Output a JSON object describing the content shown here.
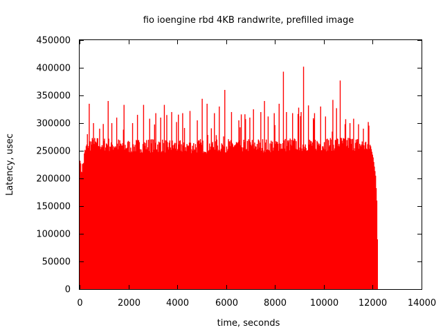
{
  "chart_data": {
    "type": "bar",
    "title": "fio ioengine rbd 4KB randwrite, prefilled image",
    "xlabel": "time, seconds",
    "ylabel": "Latency, usec",
    "xlim": [
      0,
      14000
    ],
    "ylim": [
      0,
      450000
    ],
    "x_ticks": [
      "0",
      "2000",
      "4000",
      "6000",
      "8000",
      "10000",
      "12000",
      "14000"
    ],
    "y_ticks": [
      "0",
      "50000",
      "100000",
      "150000",
      "200000",
      "250000",
      "300000",
      "350000",
      "400000",
      "450000"
    ],
    "grid": false,
    "legend": "none",
    "bar_color": "#ff0000",
    "series": [
      {
        "x_start": 0,
        "x_end": 12200,
        "x_step": 25,
        "typical_min": 205000,
        "typical_max": 275000,
        "band": [
          [
            0,
            215000
          ],
          [
            100,
            220000
          ],
          [
            200,
            245000
          ],
          [
            300,
            262000
          ],
          [
            1000,
            262000
          ],
          [
            2000,
            258000
          ],
          [
            3000,
            260000
          ],
          [
            4000,
            258000
          ],
          [
            5000,
            258000
          ],
          [
            6000,
            260000
          ],
          [
            7000,
            260000
          ],
          [
            8000,
            260000
          ],
          [
            9000,
            262000
          ],
          [
            10000,
            262000
          ],
          [
            11000,
            264000
          ],
          [
            11900,
            258000
          ],
          [
            12000,
            238000
          ],
          [
            12100,
            205000
          ],
          [
            12150,
            160000
          ],
          [
            12200,
            20000
          ]
        ],
        "peaks": [
          [
            10,
            232000
          ],
          [
            310,
            280000
          ],
          [
            380,
            335000
          ],
          [
            560,
            300000
          ],
          [
            800,
            290000
          ],
          [
            1150,
            340000
          ],
          [
            1300,
            300000
          ],
          [
            1500,
            310000
          ],
          [
            1800,
            333000
          ],
          [
            2150,
            300000
          ],
          [
            2350,
            315000
          ],
          [
            2600,
            333000
          ],
          [
            2850,
            308000
          ],
          [
            3100,
            318000
          ],
          [
            3300,
            310000
          ],
          [
            3450,
            333000
          ],
          [
            3750,
            320000
          ],
          [
            3950,
            302000
          ],
          [
            4200,
            318000
          ],
          [
            4500,
            322000
          ],
          [
            4800,
            305000
          ],
          [
            5000,
            344000
          ],
          [
            5200,
            335000
          ],
          [
            5500,
            318000
          ],
          [
            5700,
            330000
          ],
          [
            5930,
            360000
          ],
          [
            6200,
            320000
          ],
          [
            6500,
            305000
          ],
          [
            6750,
            316000
          ],
          [
            6950,
            310000
          ],
          [
            7100,
            325000
          ],
          [
            7400,
            320000
          ],
          [
            7550,
            340000
          ],
          [
            7700,
            312000
          ],
          [
            7950,
            318000
          ],
          [
            8150,
            335000
          ],
          [
            8330,
            393000
          ],
          [
            8450,
            320000
          ],
          [
            8700,
            318000
          ],
          [
            8950,
            328000
          ],
          [
            9050,
            320000
          ],
          [
            9150,
            402000
          ],
          [
            9350,
            332000
          ],
          [
            9600,
            318000
          ],
          [
            9850,
            330000
          ],
          [
            10050,
            312000
          ],
          [
            10350,
            342000
          ],
          [
            10500,
            327000
          ],
          [
            10650,
            377000
          ],
          [
            10850,
            298000
          ],
          [
            11050,
            300000
          ],
          [
            11200,
            308000
          ],
          [
            11400,
            298000
          ],
          [
            11600,
            290000
          ],
          [
            11800,
            302000
          ]
        ]
      }
    ]
  }
}
